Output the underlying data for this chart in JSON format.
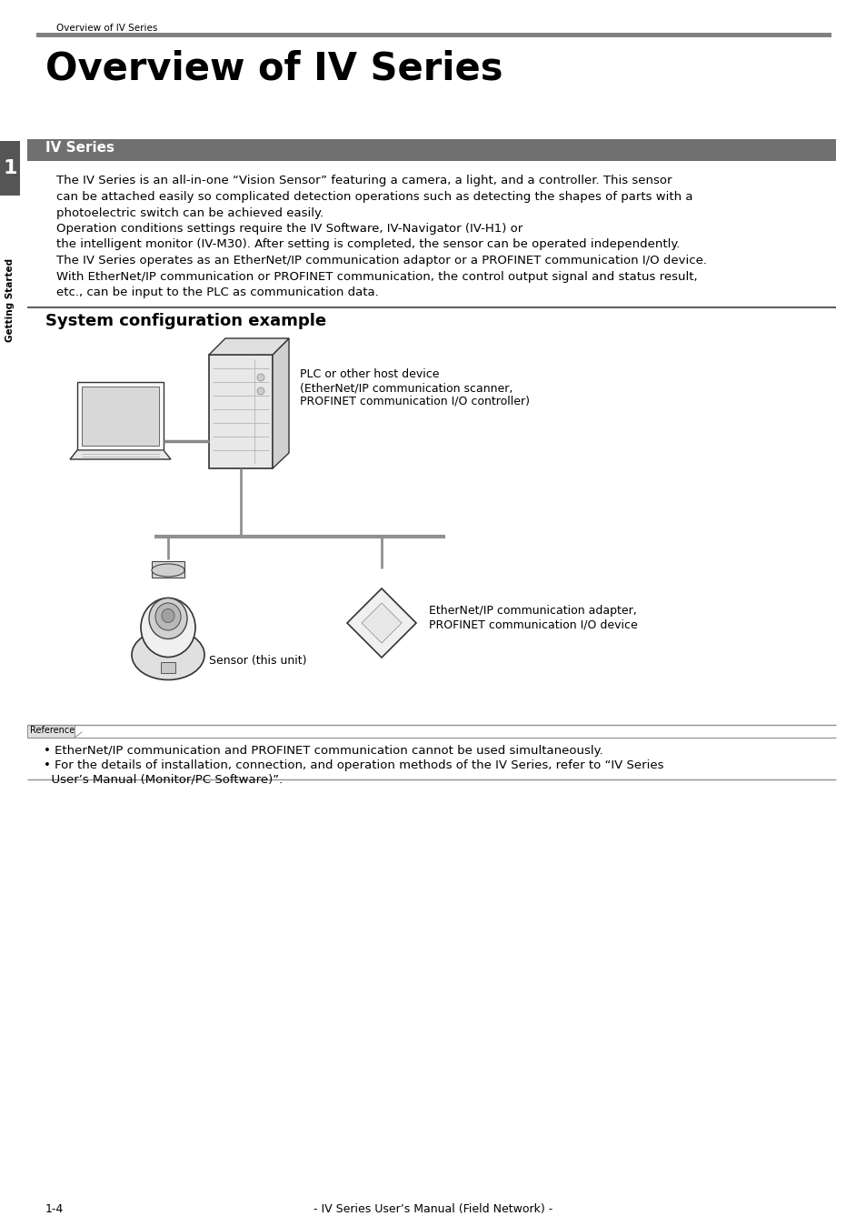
{
  "page_bg": "#ffffff",
  "header_text": "Overview of IV Series",
  "main_title": "Overview of IV Series",
  "chapter_num": "1",
  "chapter_label": "Getting Started",
  "section_title": "IV Series",
  "body_text_lines": [
    "The IV Series is an all-in-one “Vision Sensor” featuring a camera, a light, and a controller. This sensor",
    "can be attached easily so complicated detection operations such as detecting the shapes of parts with a",
    "photoelectric switch can be achieved easily.",
    "Operation conditions settings require the IV Software, IV-Navigator (IV-H1) or",
    "the intelligent monitor (IV-M30). After setting is completed, the sensor can be operated independently.",
    "The IV Series operates as an EtherNet/IP communication adaptor or a PROFINET communication I/O device.",
    "With EtherNet/IP communication or PROFINET communication, the control output signal and status result,",
    "etc., can be input to the PLC as communication data."
  ],
  "subsection_title": "System configuration example",
  "plc_label_line1": "PLC or other host device",
  "plc_label_line2": "(EtherNet/IP communication scanner,",
  "plc_label_line3": "PROFINET communication I/O controller)",
  "adapter_label_line1": "EtherNet/IP communication adapter,",
  "adapter_label_line2": "PROFINET communication I/O device",
  "sensor_label": "Sensor (this unit)",
  "reference_title": "Reference",
  "reference_notes": [
    "• EtherNet/IP communication and PROFINET communication cannot be used simultaneously.",
    "• For the details of installation, connection, and operation methods of the IV Series, refer to “IV Series",
    "  User’s Manual (Monitor/PC Software)”."
  ],
  "footer_text": "- IV Series User’s Manual (Field Network) -",
  "footer_page": "1-4"
}
